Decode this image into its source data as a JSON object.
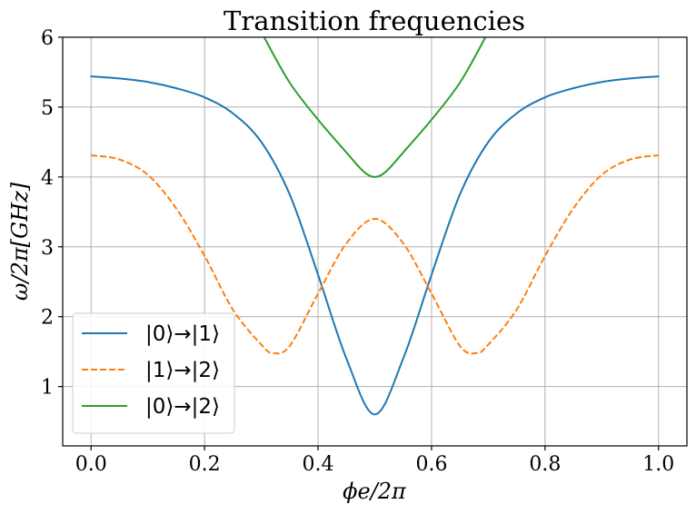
{
  "chart_data": {
    "type": "line",
    "title": "Transition frequencies",
    "xlabel": "ϕe/2π",
    "ylabel": "ω/2π[GHz]",
    "xlim": [
      -0.05,
      1.05
    ],
    "ylim": [
      0.15,
      6.0
    ],
    "x_ticks": [
      0.0,
      0.2,
      0.4,
      0.6,
      0.8,
      1.0
    ],
    "x_tick_labels": [
      "0.0",
      "0.2",
      "0.4",
      "0.6",
      "0.8",
      "1.0"
    ],
    "y_ticks": [
      1,
      2,
      3,
      4,
      5,
      6
    ],
    "y_tick_labels": [
      "1",
      "2",
      "3",
      "4",
      "5",
      "6"
    ],
    "grid": true,
    "legend_position": "lower-left",
    "series": [
      {
        "name": "|0⟩→|1⟩",
        "color": "#1f77b4",
        "linestyle": "solid",
        "x": [
          0.0,
          0.05,
          0.1,
          0.15,
          0.2,
          0.25,
          0.3,
          0.35,
          0.4,
          0.45,
          0.5,
          0.55,
          0.6,
          0.65,
          0.7,
          0.75,
          0.8,
          0.85,
          0.9,
          0.95,
          1.0
        ],
        "y": [
          5.44,
          5.41,
          5.36,
          5.27,
          5.14,
          4.91,
          4.5,
          3.75,
          2.6,
          1.4,
          0.6,
          1.4,
          2.6,
          3.75,
          4.5,
          4.91,
          5.14,
          5.27,
          5.36,
          5.41,
          5.44
        ]
      },
      {
        "name": "|1⟩→|2⟩",
        "color": "#ff7f0e",
        "linestyle": "dashed",
        "x": [
          0.0,
          0.05,
          0.1,
          0.15,
          0.2,
          0.25,
          0.3,
          0.32,
          0.35,
          0.4,
          0.45,
          0.5,
          0.55,
          0.6,
          0.65,
          0.68,
          0.7,
          0.75,
          0.8,
          0.85,
          0.9,
          0.95,
          1.0
        ],
        "y": [
          4.31,
          4.25,
          4.03,
          3.55,
          2.87,
          2.1,
          1.6,
          1.48,
          1.58,
          2.33,
          3.05,
          3.4,
          3.05,
          2.33,
          1.58,
          1.48,
          1.6,
          2.1,
          2.87,
          3.55,
          4.03,
          4.25,
          4.31
        ]
      },
      {
        "name": "|0⟩→|2⟩",
        "color": "#2ca02c",
        "linestyle": "solid",
        "x": [
          0.305,
          0.35,
          0.4,
          0.45,
          0.48,
          0.5,
          0.52,
          0.55,
          0.6,
          0.65,
          0.695
        ],
        "y": [
          6.0,
          5.35,
          4.82,
          4.35,
          4.08,
          4.0,
          4.08,
          4.35,
          4.82,
          5.35,
          6.0
        ]
      }
    ]
  }
}
